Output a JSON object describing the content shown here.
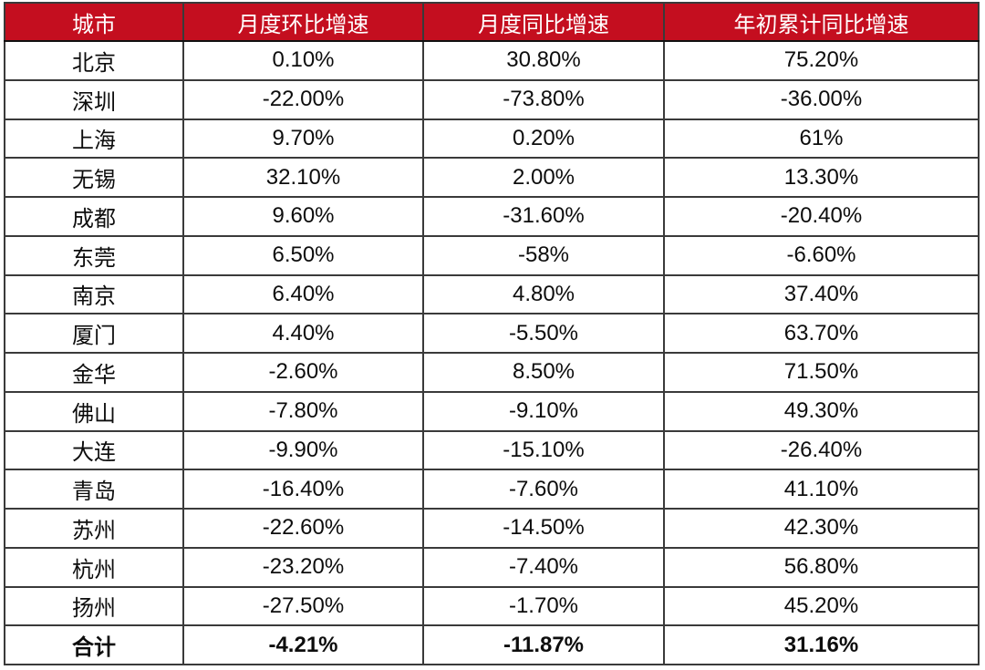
{
  "chart_data": {
    "type": "table",
    "columns": [
      "城市",
      "月度环比增速",
      "月度同比增速",
      "年初累计同比增速"
    ],
    "rows": [
      [
        "北京",
        "0.10%",
        "30.80%",
        "75.20%"
      ],
      [
        "深圳",
        "-22.00%",
        "-73.80%",
        "-36.00%"
      ],
      [
        "上海",
        "9.70%",
        "0.20%",
        "61%"
      ],
      [
        "无锡",
        "32.10%",
        "2.00%",
        "13.30%"
      ],
      [
        "成都",
        "9.60%",
        "-31.60%",
        "-20.40%"
      ],
      [
        "东莞",
        "6.50%",
        "-58%",
        "-6.60%"
      ],
      [
        "南京",
        "6.40%",
        "4.80%",
        "37.40%"
      ],
      [
        "厦门",
        "4.40%",
        "-5.50%",
        "63.70%"
      ],
      [
        "金华",
        "-2.60%",
        "8.50%",
        "71.50%"
      ],
      [
        "佛山",
        "-7.80%",
        "-9.10%",
        "49.30%"
      ],
      [
        "大连",
        "-9.90%",
        "-15.10%",
        "-26.40%"
      ],
      [
        "青岛",
        "-16.40%",
        "-7.60%",
        "41.10%"
      ],
      [
        "苏州",
        "-22.60%",
        "-14.50%",
        "42.30%"
      ],
      [
        "杭州",
        "-23.20%",
        "-7.40%",
        "56.80%"
      ],
      [
        "扬州",
        "-27.50%",
        "-1.70%",
        "45.20%"
      ]
    ],
    "total_row": [
      "合计",
      "-4.21%",
      "-11.87%",
      "31.16%"
    ],
    "layout": {
      "header_position": "top",
      "grid": "on",
      "total_row_bold": true
    }
  },
  "colors": {
    "header_bg": "#c40e1f",
    "header_text": "#ffffff",
    "border": "#3a3a3a",
    "body_text": "#0d0d0d",
    "body_bg": "#ffffff"
  }
}
